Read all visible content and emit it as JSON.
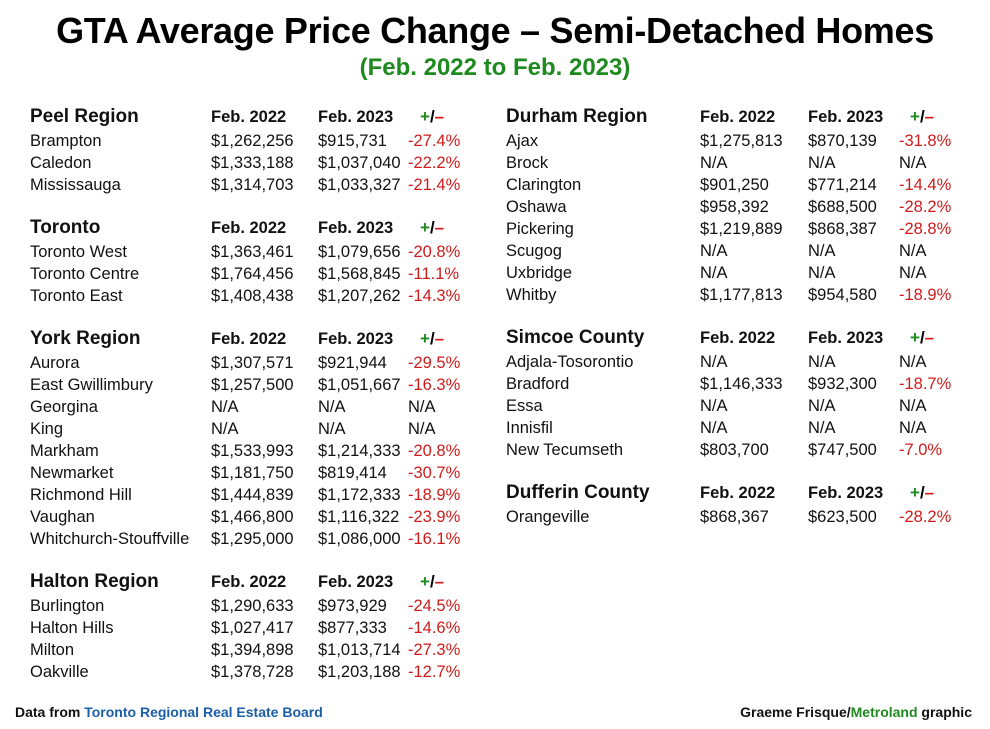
{
  "title": "GTA Average Price Change – Semi-Detached Homes",
  "subtitle": "(Feb. 2022 to Feb. 2023)",
  "colors": {
    "title": "#000000",
    "subtitle": "#1f8a1f",
    "negative": "#d11b1b",
    "plus": "#1f8a1f",
    "source_link": "#1b5fa8"
  },
  "header_labels": {
    "col1": "Feb. 2022",
    "col2": "Feb. 2023",
    "plus": "+",
    "slash": "/",
    "minus": "–"
  },
  "footer": {
    "source_prefix": "Data from ",
    "source_name": "Toronto Regional Real Estate Board",
    "credit_name": "Graeme Frisque/",
    "credit_brand": "Metroland",
    "credit_suffix": " graphic"
  },
  "chart_data": {
    "type": "table",
    "title": "GTA Average Price Change – Semi-Detached Homes",
    "subtitle": "(Feb. 2022 to Feb. 2023)",
    "columns": [
      "Feb. 2022",
      "Feb. 2023",
      "+/–"
    ],
    "regions": [
      {
        "name": "Peel Region",
        "column": "left",
        "rows": [
          {
            "area": "Brampton",
            "feb2022": "$1,262,256",
            "feb2023": "$915,731",
            "change": "-27.4%"
          },
          {
            "area": "Caledon",
            "feb2022": "$1,333,188",
            "feb2023": "$1,037,040",
            "change": "-22.2%"
          },
          {
            "area": "Mississauga",
            "feb2022": "$1,314,703",
            "feb2023": "$1,033,327",
            "change": "-21.4%"
          }
        ]
      },
      {
        "name": "Toronto",
        "column": "left",
        "rows": [
          {
            "area": "Toronto West",
            "feb2022": "$1,363,461",
            "feb2023": "$1,079,656",
            "change": "-20.8%"
          },
          {
            "area": "Toronto Centre",
            "feb2022": "$1,764,456",
            "feb2023": "$1,568,845",
            "change": "-11.1%"
          },
          {
            "area": "Toronto East",
            "feb2022": "$1,408,438",
            "feb2023": "$1,207,262",
            "change": "-14.3%"
          }
        ]
      },
      {
        "name": "York Region",
        "column": "left",
        "rows": [
          {
            "area": "Aurora",
            "feb2022": "$1,307,571",
            "feb2023": "$921,944",
            "change": "-29.5%"
          },
          {
            "area": "East Gwillimbury",
            "feb2022": "$1,257,500",
            "feb2023": "$1,051,667",
            "change": "-16.3%"
          },
          {
            "area": "Georgina",
            "feb2022": "N/A",
            "feb2023": "N/A",
            "change": "N/A"
          },
          {
            "area": "King",
            "feb2022": "N/A",
            "feb2023": "N/A",
            "change": "N/A"
          },
          {
            "area": "Markham",
            "feb2022": "$1,533,993",
            "feb2023": "$1,214,333",
            "change": "-20.8%"
          },
          {
            "area": "Newmarket",
            "feb2022": "$1,181,750",
            "feb2023": "$819,414",
            "change": "-30.7%"
          },
          {
            "area": "Richmond Hill",
            "feb2022": "$1,444,839",
            "feb2023": "$1,172,333",
            "change": "-18.9%"
          },
          {
            "area": "Vaughan",
            "feb2022": "$1,466,800",
            "feb2023": "$1,116,322",
            "change": "-23.9%"
          },
          {
            "area": "Whitchurch-Stouffville",
            "feb2022": "$1,295,000",
            "feb2023": "$1,086,000",
            "change": "-16.1%"
          }
        ]
      },
      {
        "name": "Halton Region",
        "column": "left",
        "rows": [
          {
            "area": "Burlington",
            "feb2022": "$1,290,633",
            "feb2023": "$973,929",
            "change": "-24.5%"
          },
          {
            "area": "Halton Hills",
            "feb2022": "$1,027,417",
            "feb2023": "$877,333",
            "change": "-14.6%"
          },
          {
            "area": "Milton",
            "feb2022": "$1,394,898",
            "feb2023": "$1,013,714",
            "change": "-27.3%"
          },
          {
            "area": "Oakville",
            "feb2022": "$1,378,728",
            "feb2023": "$1,203,188",
            "change": "-12.7%"
          }
        ]
      },
      {
        "name": "Durham Region",
        "column": "right",
        "rows": [
          {
            "area": "Ajax",
            "feb2022": "$1,275,813",
            "feb2023": "$870,139",
            "change": "-31.8%"
          },
          {
            "area": "Brock",
            "feb2022": "N/A",
            "feb2023": "N/A",
            "change": "N/A"
          },
          {
            "area": "Clarington",
            "feb2022": "$901,250",
            "feb2023": "$771,214",
            "change": "-14.4%"
          },
          {
            "area": "Oshawa",
            "feb2022": "$958,392",
            "feb2023": "$688,500",
            "change": "-28.2%"
          },
          {
            "area": "Pickering",
            "feb2022": "$1,219,889",
            "feb2023": "$868,387",
            "change": "-28.8%"
          },
          {
            "area": "Scugog",
            "feb2022": "N/A",
            "feb2023": "N/A",
            "change": "N/A"
          },
          {
            "area": "Uxbridge",
            "feb2022": "N/A",
            "feb2023": "N/A",
            "change": "N/A"
          },
          {
            "area": "Whitby",
            "feb2022": "$1,177,813",
            "feb2023": "$954,580",
            "change": "-18.9%"
          }
        ]
      },
      {
        "name": "Simcoe County",
        "column": "right",
        "rows": [
          {
            "area": "Adjala-Tosorontio",
            "feb2022": "N/A",
            "feb2023": "N/A",
            "change": "N/A"
          },
          {
            "area": "Bradford",
            "feb2022": "$1,146,333",
            "feb2023": "$932,300",
            "change": "-18.7%"
          },
          {
            "area": "Essa",
            "feb2022": "N/A",
            "feb2023": "N/A",
            "change": "N/A"
          },
          {
            "area": "Innisfil",
            "feb2022": "N/A",
            "feb2023": "N/A",
            "change": "N/A"
          },
          {
            "area": "New Tecumseth",
            "feb2022": "$803,700",
            "feb2023": "$747,500",
            "change": "-7.0%"
          }
        ]
      },
      {
        "name": "Dufferin County",
        "column": "right",
        "rows": [
          {
            "area": "Orangeville",
            "feb2022": "$868,367",
            "feb2023": "$623,500",
            "change": "-28.2%"
          }
        ]
      }
    ]
  }
}
